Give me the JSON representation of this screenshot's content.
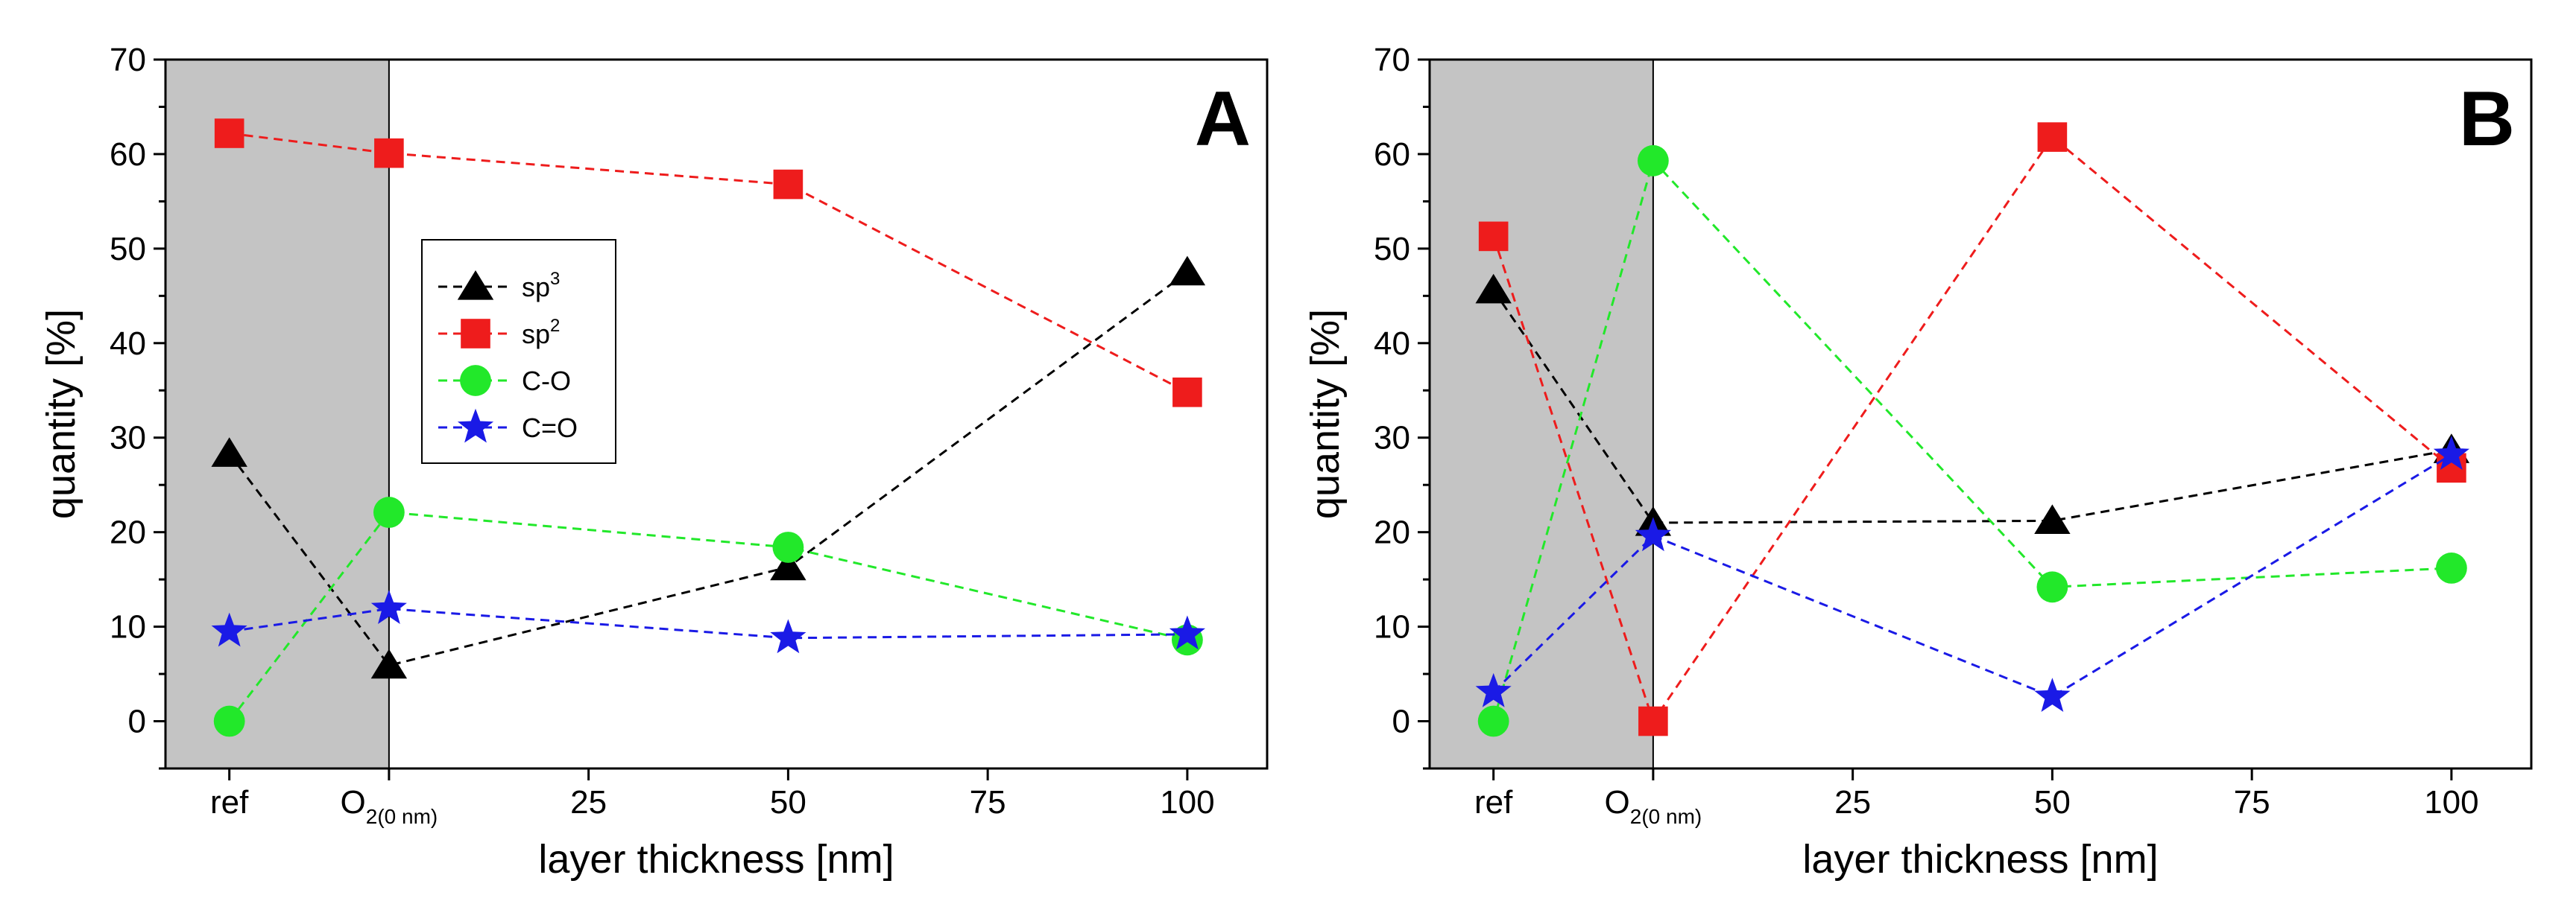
{
  "chart_data": [
    {
      "type": "line",
      "panel_label": "A",
      "xlabel": "layer thickness [nm]",
      "ylabel": "quantity [%]",
      "xlim": [
        -28,
        110
      ],
      "ylim": [
        -5,
        70
      ],
      "x_ticks": [
        {
          "value": -20,
          "label": "ref"
        },
        {
          "value": 0,
          "label": "O",
          "sub": "2(0 nm)"
        },
        {
          "value": 25,
          "label": "25"
        },
        {
          "value": 50,
          "label": "50"
        },
        {
          "value": 75,
          "label": "75"
        },
        {
          "value": 100,
          "label": "100"
        }
      ],
      "y_ticks": [
        0,
        10,
        20,
        30,
        40,
        50,
        60,
        70
      ],
      "reference_region": [
        -30,
        0
      ],
      "legend": {
        "placement": "center-left"
      },
      "x": [
        -20,
        0,
        50,
        100
      ],
      "series": [
        {
          "name": "sp",
          "name_sup": "3",
          "marker": "triangle",
          "color": "#000000",
          "values": [
            28.3,
            5.9,
            16.3,
            47.5
          ]
        },
        {
          "name": "sp",
          "name_sup": "2",
          "marker": "square",
          "color": "#ee1c1c",
          "values": [
            62.2,
            60.1,
            56.8,
            34.8
          ]
        },
        {
          "name": "C-O",
          "marker": "circle",
          "color": "#22e82a",
          "values": [
            0,
            22.1,
            18.4,
            8.6
          ]
        },
        {
          "name": "C=O",
          "marker": "star",
          "color": "#1a1ae6",
          "values": [
            9.5,
            11.9,
            8.8,
            9.2
          ]
        }
      ]
    },
    {
      "type": "line",
      "panel_label": "B",
      "xlabel": "layer thickness [nm]",
      "ylabel": "quantity [%]",
      "xlim": [
        -28,
        110
      ],
      "ylim": [
        -5,
        70
      ],
      "x_ticks": [
        {
          "value": -20,
          "label": "ref"
        },
        {
          "value": 0,
          "label": "O",
          "sub": "2(0 nm)"
        },
        {
          "value": 25,
          "label": "25"
        },
        {
          "value": 50,
          "label": "50"
        },
        {
          "value": 75,
          "label": "75"
        },
        {
          "value": 100,
          "label": "100"
        }
      ],
      "y_ticks": [
        0,
        10,
        20,
        30,
        40,
        50,
        60,
        70
      ],
      "reference_region": [
        -30,
        0
      ],
      "x": [
        -20,
        0,
        50,
        100
      ],
      "series": [
        {
          "name": "sp",
          "name_sup": "3",
          "marker": "triangle",
          "color": "#000000",
          "values": [
            45.6,
            21.0,
            21.2,
            28.7
          ]
        },
        {
          "name": "sp",
          "name_sup": "2",
          "marker": "square",
          "color": "#ee1c1c",
          "values": [
            51.3,
            0,
            61.8,
            26.8
          ]
        },
        {
          "name": "C-O",
          "marker": "circle",
          "color": "#22e82a",
          "values": [
            0,
            59.3,
            14.2,
            16.2
          ]
        },
        {
          "name": "C=O",
          "marker": "star",
          "color": "#1a1ae6",
          "values": [
            3.1,
            19.6,
            2.6,
            28.2
          ]
        }
      ]
    }
  ]
}
